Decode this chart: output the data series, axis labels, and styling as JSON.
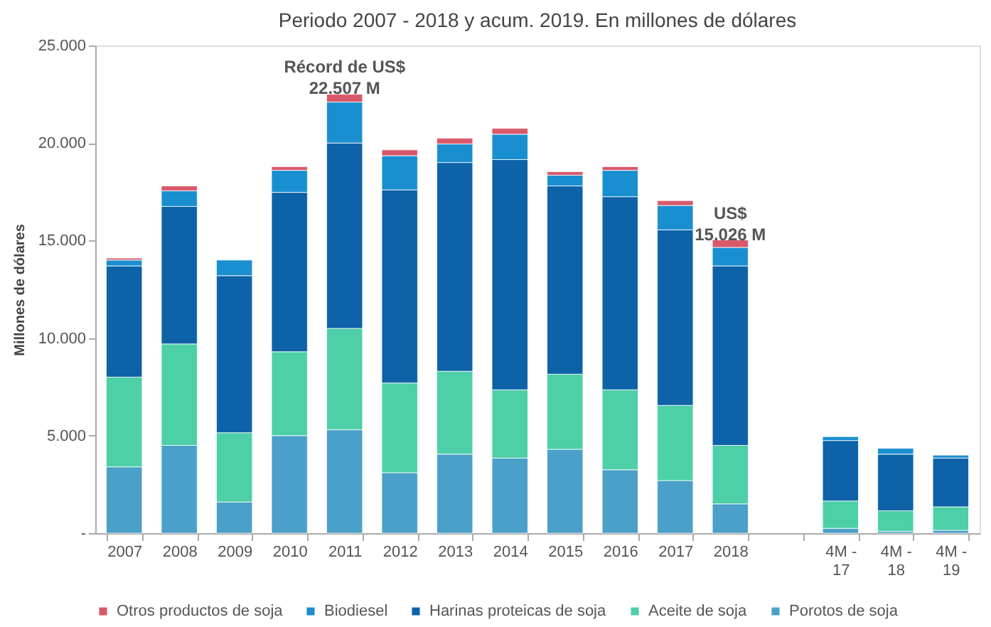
{
  "chart_data": {
    "type": "bar",
    "stacked": true,
    "title": "Periodo 2007 - 2018 y acum. 2019. En millones de dólares",
    "ylabel": "Millones de dólares",
    "categories": [
      "2007",
      "2008",
      "2009",
      "2010",
      "2011",
      "2012",
      "2013",
      "2014",
      "2015",
      "2016",
      "2017",
      "2018",
      null,
      "4M - 17",
      "4M - 18",
      "4M - 19"
    ],
    "series": [
      {
        "name": "Porotos de soja",
        "color": "#4aa0c8",
        "values": [
          3400,
          4500,
          1600,
          5000,
          5300,
          3100,
          4050,
          3850,
          4300,
          3250,
          2700,
          1500,
          null,
          250,
          100,
          150
        ]
      },
      {
        "name": "Aceite de soja",
        "color": "#4dcfa8",
        "values": [
          4600,
          5200,
          3550,
          4300,
          5200,
          4600,
          4250,
          3500,
          3850,
          4100,
          3850,
          3000,
          null,
          1400,
          1050,
          1200
        ]
      },
      {
        "name": "Harinas proteicas de soja",
        "color": "#0d62a8",
        "values": [
          5700,
          7050,
          8050,
          8170,
          9500,
          9900,
          10700,
          11800,
          9650,
          9900,
          9000,
          9200,
          null,
          3100,
          2900,
          2500
        ]
      },
      {
        "name": "Biodiesel",
        "color": "#1a8fd0",
        "values": [
          300,
          800,
          800,
          1130,
          2100,
          1750,
          950,
          1300,
          550,
          1350,
          1250,
          950,
          null,
          200,
          300,
          150
        ]
      },
      {
        "name": "Otros productos de soja",
        "color": "#d9596b",
        "values": [
          100,
          250,
          null,
          190,
          400,
          300,
          300,
          300,
          180,
          190,
          250,
          380,
          null,
          null,
          null,
          null
        ]
      }
    ],
    "ylim": [
      0,
      25000
    ],
    "yticks": [
      {
        "value": 0,
        "label": "-"
      },
      {
        "value": 5000,
        "label": "5.000"
      },
      {
        "value": 10000,
        "label": "10.000"
      },
      {
        "value": 15000,
        "label": "15.000"
      },
      {
        "value": 20000,
        "label": "20.000"
      },
      {
        "value": 25000,
        "label": "25.000"
      }
    ],
    "grid": false,
    "legend": "bottom",
    "annotations": [
      {
        "text": "Récord de US$\n22.507 M",
        "x": "2011",
        "y": 22507
      },
      {
        "text": "US$\n15.026 M",
        "x": "2018",
        "y": 15026
      }
    ]
  }
}
